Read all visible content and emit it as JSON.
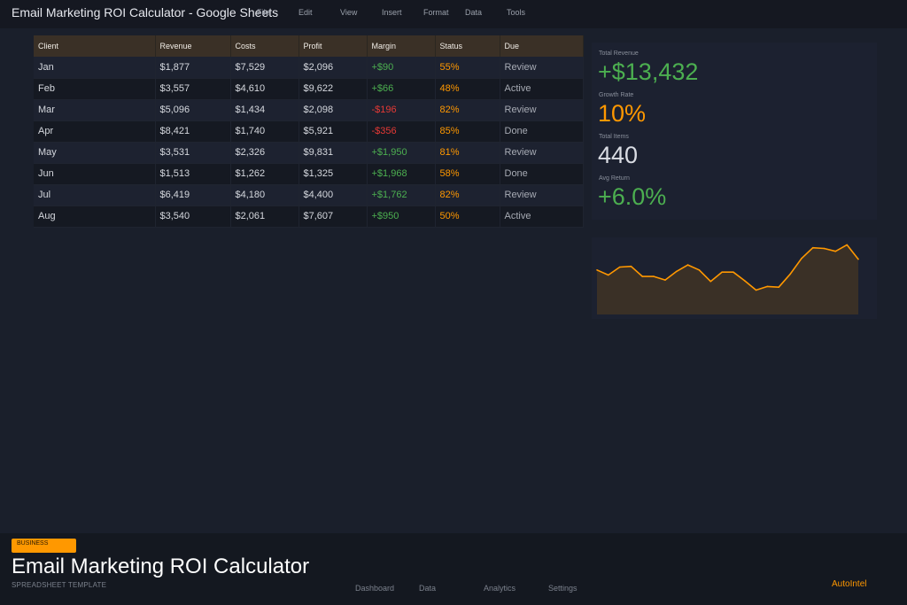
{
  "app": {
    "title": "Email Marketing ROI Calculator - Google Sheets",
    "menu": [
      "File",
      "Edit",
      "View",
      "Insert",
      "Format",
      "Data",
      "Tools"
    ]
  },
  "table": {
    "headers": [
      "Client",
      "Revenue",
      "Costs",
      "Profit",
      "Margin",
      "Status",
      "Due"
    ],
    "rows": [
      {
        "client": "Jan",
        "revenue": "$1,877",
        "costs": "$7,529",
        "profit": "$2,096",
        "margin": "+$90",
        "margin_sign": "pos",
        "status": "55%",
        "due": "Review"
      },
      {
        "client": "Feb",
        "revenue": "$3,557",
        "costs": "$4,610",
        "profit": "$9,622",
        "margin": "+$66",
        "margin_sign": "pos",
        "status": "48%",
        "due": "Active"
      },
      {
        "client": "Mar",
        "revenue": "$5,096",
        "costs": "$1,434",
        "profit": "$2,098",
        "margin": "-$196",
        "margin_sign": "neg",
        "status": "82%",
        "due": "Review"
      },
      {
        "client": "Apr",
        "revenue": "$8,421",
        "costs": "$1,740",
        "profit": "$5,921",
        "margin": "-$356",
        "margin_sign": "neg",
        "status": "85%",
        "due": "Done"
      },
      {
        "client": "May",
        "revenue": "$3,531",
        "costs": "$2,326",
        "profit": "$9,831",
        "margin": "+$1,950",
        "margin_sign": "pos",
        "status": "81%",
        "due": "Review"
      },
      {
        "client": "Jun",
        "revenue": "$1,513",
        "costs": "$1,262",
        "profit": "$1,325",
        "margin": "+$1,968",
        "margin_sign": "pos",
        "status": "58%",
        "due": "Done"
      },
      {
        "client": "Jul",
        "revenue": "$6,419",
        "costs": "$4,180",
        "profit": "$4,400",
        "margin": "+$1,762",
        "margin_sign": "pos",
        "status": "82%",
        "due": "Review"
      },
      {
        "client": "Aug",
        "revenue": "$3,540",
        "costs": "$2,061",
        "profit": "$7,607",
        "margin": "+$950",
        "margin_sign": "pos",
        "status": "50%",
        "due": "Active"
      }
    ]
  },
  "kpis": [
    {
      "label": "Total Revenue",
      "value": "+$13,432",
      "color": "#4caf50"
    },
    {
      "label": "Growth Rate",
      "value": "10%",
      "color": "#ff9800"
    },
    {
      "label": "Total Items",
      "value": "440",
      "color": "#d9dce3"
    },
    {
      "label": "Avg Return",
      "value": "+6.0%",
      "color": "#4caf50"
    }
  ],
  "chart_data": {
    "type": "area",
    "values": [
      62,
      55,
      66,
      67,
      53,
      53,
      48,
      60,
      69,
      62,
      46,
      59,
      59,
      47,
      34,
      39,
      38,
      56,
      78,
      93,
      92,
      88,
      97,
      77
    ],
    "ylim": [
      0,
      100
    ],
    "grid": false,
    "line_color": "#ff9800",
    "fill_color": "#3a3026"
  },
  "footer": {
    "badge": "BUSINESS",
    "title": "Email Marketing ROI Calculator",
    "subtitle": "SPREADSHEET TEMPLATE",
    "nav": [
      "Dashboard",
      "Data",
      "Analytics",
      "Settings"
    ],
    "brand": "AutoIntel"
  },
  "colors": {
    "accent": "#ff9800",
    "positive": "#4caf50",
    "negative": "#e53935",
    "background": "#1a1f2b"
  }
}
